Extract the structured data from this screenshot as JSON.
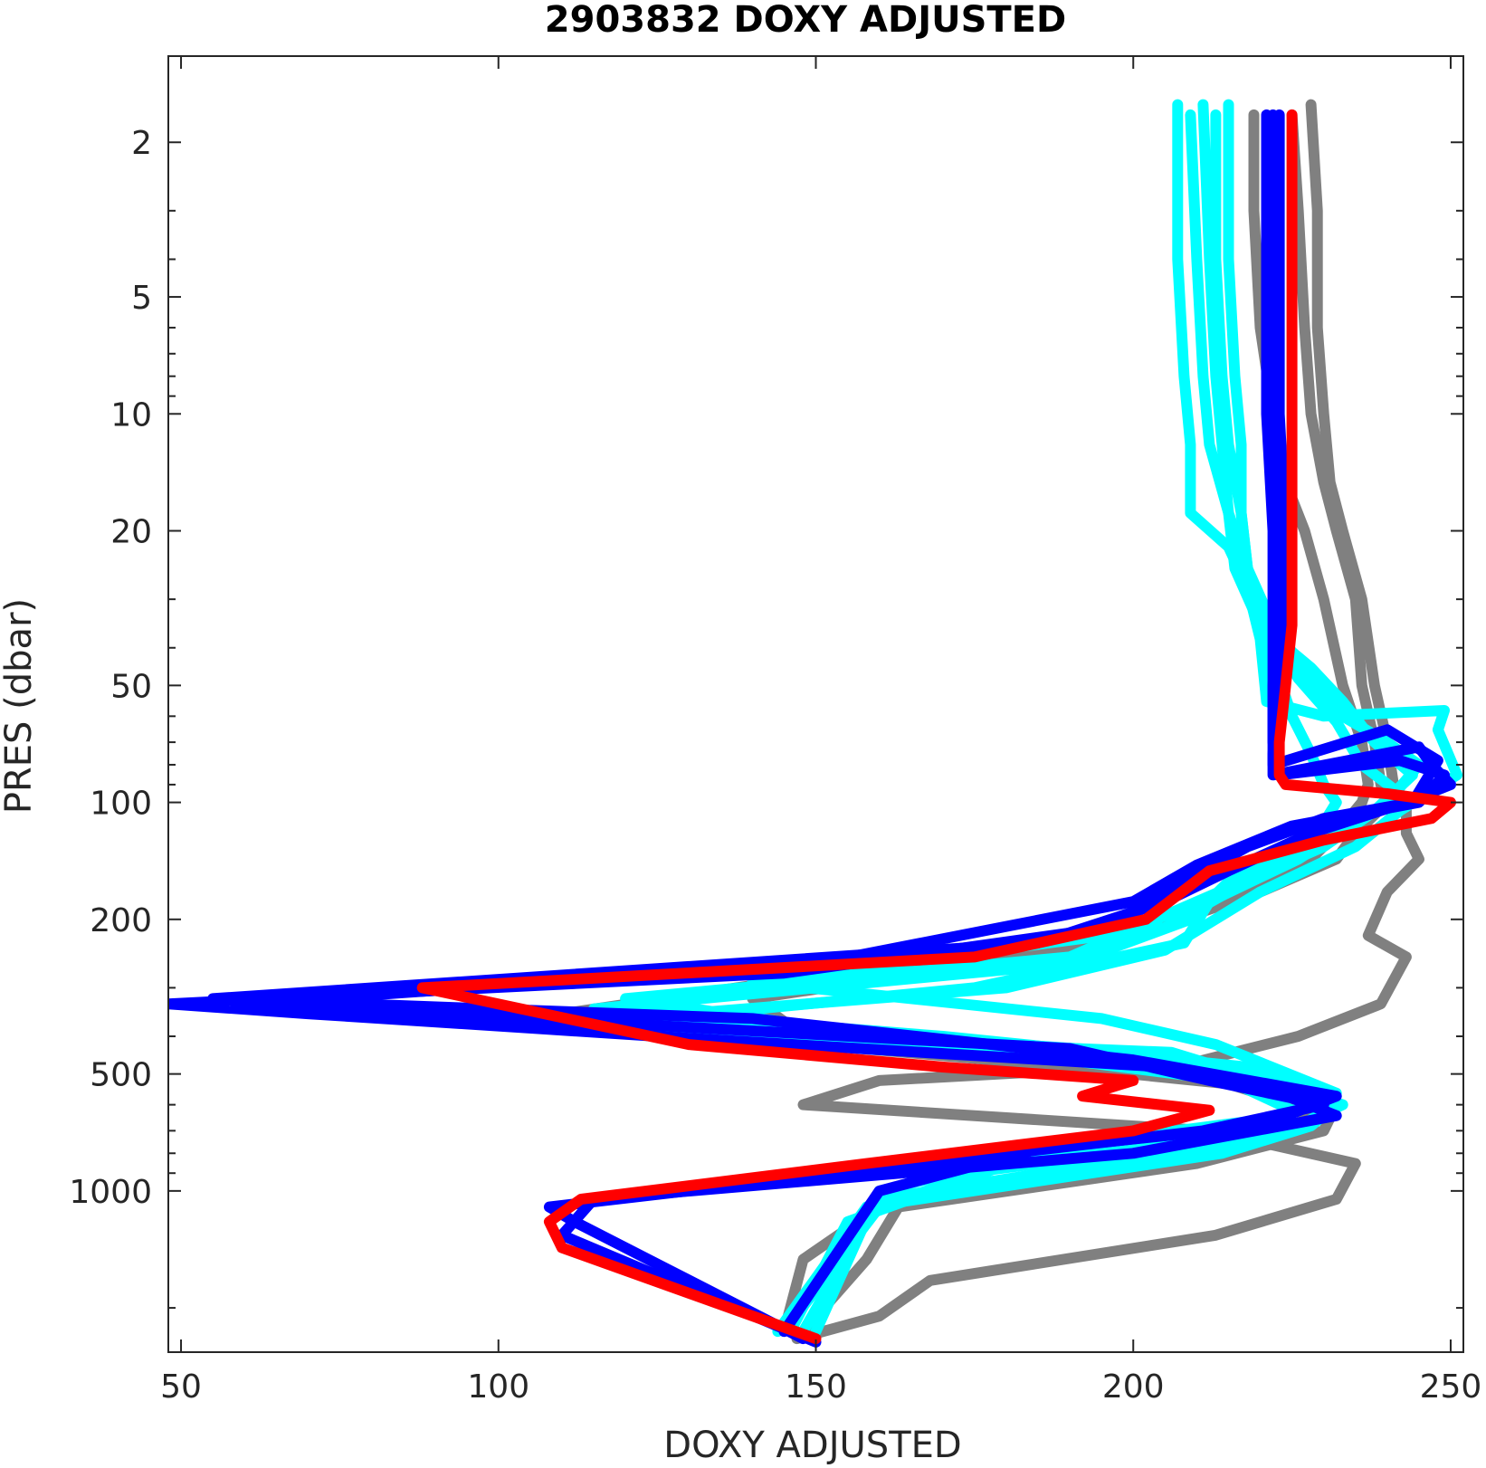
{
  "chart_data": {
    "type": "line",
    "title": "2903832  DOXY ADJUSTED",
    "xlabel": "DOXY ADJUSTED",
    "ylabel": "PRES (dbar)",
    "xlim": [
      48,
      252
    ],
    "ylim": [
      1.2,
      2600
    ],
    "y_scale": "log",
    "y_reversed": true,
    "x_ticks": [
      50,
      100,
      150,
      200,
      250
    ],
    "x_tick_labels": [
      "50",
      "100",
      "150",
      "200",
      "250"
    ],
    "y_ticks": [
      2,
      5,
      10,
      20,
      50,
      100,
      200,
      500,
      1000
    ],
    "y_tick_labels": [
      "2",
      "5",
      "10",
      "20",
      "50",
      "100",
      "200",
      "500",
      "1000"
    ],
    "grid": false,
    "legend": "none",
    "colors": {
      "gray": "#808080",
      "cyan": "#00ffff",
      "blue": "#0000ff",
      "red": "#ff0000"
    },
    "series": [
      {
        "color": "gray",
        "x": [
          228,
          229,
          229,
          230,
          231,
          233,
          236,
          238,
          240,
          241,
          243,
          243,
          245,
          240,
          237,
          243,
          239,
          226,
          209,
          160,
          148,
          212,
          235,
          232,
          213,
          168,
          160,
          147
        ],
        "y": [
          1.6,
          3,
          6,
          10,
          15,
          20,
          30,
          50,
          70,
          90,
          100,
          120,
          140,
          170,
          220,
          250,
          330,
          400,
          470,
          520,
          600,
          700,
          850,
          1050,
          1300,
          1700,
          2100,
          2400
        ]
      },
      {
        "color": "gray",
        "x": [
          225,
          226,
          227,
          228,
          230,
          232,
          235,
          236,
          238,
          239,
          240,
          235,
          232,
          220,
          200,
          170,
          140,
          150,
          215,
          232,
          230,
          210,
          163,
          158,
          148
        ],
        "y": [
          1.7,
          3,
          6,
          10,
          15,
          20,
          30,
          50,
          70,
          90,
          100,
          120,
          140,
          170,
          220,
          270,
          320,
          420,
          520,
          600,
          700,
          850,
          1100,
          1500,
          2300
        ]
      },
      {
        "color": "gray",
        "x": [
          219,
          219,
          220,
          222,
          224,
          227,
          230,
          233,
          236,
          237,
          236,
          232,
          228,
          218,
          195,
          150,
          110,
          160,
          215,
          228,
          225,
          200,
          160,
          148,
          145
        ],
        "y": [
          1.7,
          3,
          6,
          10,
          15,
          20,
          30,
          50,
          70,
          90,
          100,
          120,
          140,
          170,
          220,
          280,
          350,
          430,
          530,
          620,
          700,
          850,
          1100,
          1500,
          2300
        ]
      },
      {
        "color": "cyan",
        "x": [
          207,
          207,
          208,
          209,
          209,
          215,
          218,
          220,
          221,
          230,
          249,
          248,
          251,
          242,
          235,
          220,
          205,
          180,
          120,
          200,
          232,
          228,
          214,
          158,
          144
        ],
        "y": [
          1.6,
          4,
          8,
          12,
          18,
          22,
          28,
          38,
          55,
          60,
          58,
          65,
          85,
          105,
          130,
          170,
          240,
          300,
          360,
          440,
          600,
          680,
          800,
          1100,
          2300
        ]
      },
      {
        "color": "cyan",
        "x": [
          209,
          210,
          211,
          212,
          215,
          218,
          222,
          228,
          233,
          240,
          245,
          240,
          230,
          210,
          190,
          120,
          160,
          215,
          225,
          220,
          180,
          160,
          145
        ],
        "y": [
          1.7,
          4,
          8,
          12,
          18,
          25,
          35,
          48,
          60,
          70,
          80,
          100,
          130,
          180,
          250,
          320,
          400,
          520,
          620,
          720,
          850,
          1100,
          2300
        ]
      },
      {
        "color": "cyan",
        "x": [
          211,
          212,
          213,
          214,
          215,
          216,
          220,
          228,
          233,
          238,
          244,
          238,
          228,
          215,
          205,
          140,
          195,
          213,
          232,
          222,
          190,
          160,
          150
        ],
        "y": [
          1.6,
          4,
          8,
          12,
          18,
          25,
          35,
          45,
          55,
          70,
          85,
          105,
          130,
          170,
          210,
          290,
          360,
          420,
          560,
          650,
          760,
          1000,
          2300
        ]
      },
      {
        "color": "cyan",
        "x": [
          213,
          213,
          214,
          215,
          217,
          218,
          221,
          226,
          232,
          236,
          242,
          236,
          226,
          212,
          208,
          175,
          110,
          206,
          233,
          226,
          210,
          160,
          148
        ],
        "y": [
          1.7,
          4,
          8,
          12,
          18,
          25,
          35,
          48,
          62,
          80,
          95,
          110,
          140,
          180,
          230,
          300,
          380,
          440,
          600,
          680,
          780,
          1050,
          2300
        ]
      },
      {
        "color": "cyan",
        "x": [
          215,
          215,
          216,
          217,
          217,
          218,
          220,
          223,
          225,
          228,
          230,
          232,
          229,
          215,
          209,
          190,
          115,
          170,
          218,
          232,
          225,
          178,
          155,
          146
        ],
        "y": [
          1.6,
          4,
          8,
          12,
          18,
          25,
          35,
          48,
          60,
          75,
          90,
          100,
          120,
          160,
          200,
          260,
          340,
          400,
          480,
          600,
          700,
          880,
          1200,
          2300
        ]
      },
      {
        "color": "blue",
        "x": [
          223,
          223,
          223,
          224,
          224,
          223,
          222,
          222,
          245,
          247,
          250,
          243,
          228,
          215,
          205,
          185,
          55,
          140,
          200,
          232,
          220,
          185,
          160,
          145
        ],
        "y": [
          1.7,
          4,
          10,
          20,
          30,
          50,
          75,
          85,
          72,
          80,
          90,
          100,
          120,
          150,
          180,
          230,
          320,
          360,
          460,
          570,
          680,
          780,
          1000,
          2300
        ]
      },
      {
        "color": "blue",
        "x": [
          222,
          222,
          222,
          223,
          223,
          222,
          222,
          222,
          240,
          248,
          244,
          230,
          218,
          208,
          196,
          145,
          48,
          70,
          125,
          205,
          218,
          232,
          200,
          115,
          110,
          150
        ],
        "y": [
          1.7,
          4,
          10,
          20,
          30,
          50,
          68,
          80,
          65,
          78,
          100,
          110,
          130,
          160,
          210,
          275,
          330,
          350,
          400,
          480,
          520,
          640,
          800,
          1050,
          1300,
          2450
        ]
      },
      {
        "color": "blue",
        "x": [
          221,
          221,
          221,
          222,
          222,
          222,
          222,
          223,
          242,
          249,
          245,
          225,
          210,
          200,
          150,
          60,
          105,
          190,
          212,
          230,
          211,
          108,
          112,
          148
        ],
        "y": [
          1.7,
          4,
          10,
          20,
          30,
          50,
          70,
          85,
          78,
          85,
          100,
          115,
          145,
          180,
          260,
          330,
          360,
          430,
          520,
          600,
          700,
          1100,
          1200,
          2400
        ]
      },
      {
        "color": "red",
        "x": [
          225,
          225,
          225,
          225,
          225,
          225,
          224,
          223,
          223,
          224,
          240,
          250,
          247,
          230,
          212,
          202,
          175,
          88,
          130,
          170,
          200,
          192,
          212,
          200,
          158,
          113,
          108,
          110,
          150
        ],
        "y": [
          1.7,
          3,
          6,
          10,
          20,
          35,
          50,
          70,
          85,
          90,
          95,
          100,
          110,
          125,
          150,
          200,
          250,
          300,
          420,
          480,
          520,
          570,
          620,
          700,
          850,
          1050,
          1200,
          1400,
          2400
        ]
      }
    ]
  }
}
